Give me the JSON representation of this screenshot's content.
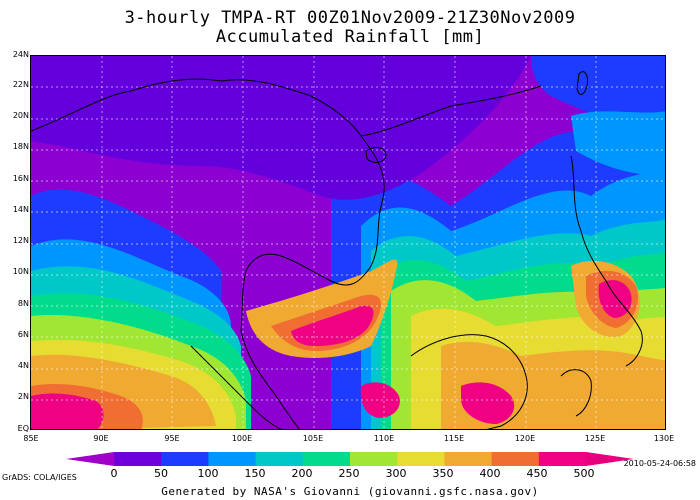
{
  "title_line1": "3-hourly TMPA-RT 00Z01Nov2009-21Z30Nov2009",
  "title_line2": "Accumulated Rainfall [mm]",
  "lat_labels": [
    "24N",
    "22N",
    "20N",
    "18N",
    "16N",
    "14N",
    "12N",
    "10N",
    "8N",
    "6N",
    "4N",
    "2N",
    "EQ"
  ],
  "lon_labels": [
    "85E",
    "90E",
    "95E",
    "100E",
    "105E",
    "110E",
    "115E",
    "120E",
    "125E",
    "130E"
  ],
  "colorbar": {
    "labels": [
      "0",
      "50",
      "100",
      "150",
      "200",
      "250",
      "300",
      "350",
      "400",
      "450",
      "500"
    ],
    "colors": [
      "#a000c8",
      "#6e00dc",
      "#1e3cff",
      "#0096ff",
      "#00c8c8",
      "#00dc8c",
      "#a0e632",
      "#e6dc32",
      "#f0aa32",
      "#f06e32",
      "#f00082",
      "#e6007f"
    ]
  },
  "grads_credit": "GrADS: COLA/IGES",
  "timestamp": "2010-05-24-06:58",
  "footer": "Generated by NASA's Giovanni (giovanni.gsfc.nasa.gov)",
  "palette": {
    "r0": "#8c00d2",
    "r50": "#6400dc",
    "r100": "#1e3cff",
    "r150": "#0096ff",
    "r200": "#00c8c8",
    "r250": "#00dc8c",
    "r300": "#a0e632",
    "r350": "#e6dc32",
    "r400": "#f0aa32",
    "r450": "#f06e32",
    "r500": "#f00082"
  }
}
